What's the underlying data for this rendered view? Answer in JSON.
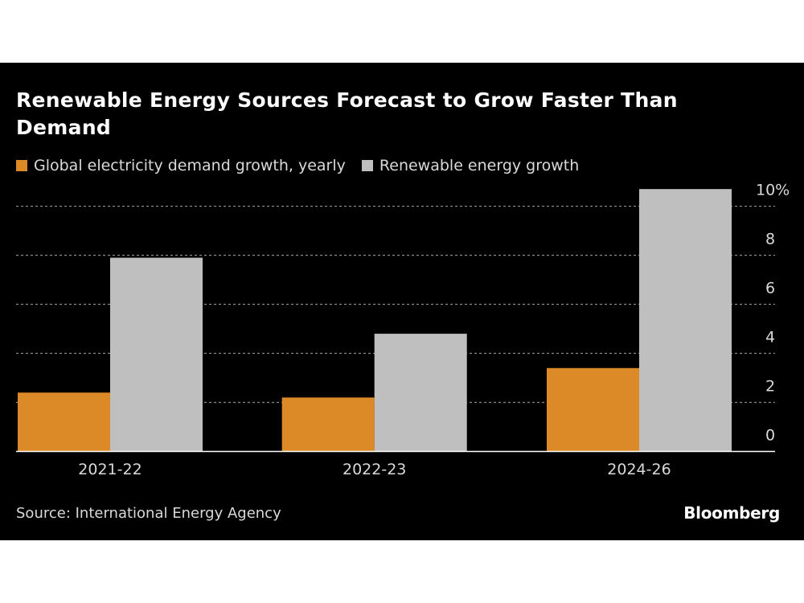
{
  "chart_data": {
    "type": "bar",
    "title": "Renewable Energy Sources Forecast to Grow Faster Than Demand",
    "categories": [
      "2021-22",
      "2022-23",
      "2024-26"
    ],
    "series": [
      {
        "name": "Global electricity demand growth, yearly",
        "values": [
          2.4,
          2.2,
          3.4
        ],
        "color": "#dc8a28"
      },
      {
        "name": "Renewable energy growth",
        "values": [
          7.9,
          4.8,
          10.7
        ],
        "color": "#bfbfbf"
      }
    ],
    "yticks": [
      "0",
      "2",
      "4",
      "6",
      "8",
      "10%"
    ],
    "ytick_values": [
      0,
      2,
      4,
      6,
      8,
      10
    ],
    "ylim": [
      0,
      10.7
    ],
    "grid": true,
    "legend_position": "top-left",
    "yaxis_side": "right",
    "source": "Source: International Energy Agency",
    "logo": "Bloomberg",
    "background": "#000000"
  }
}
